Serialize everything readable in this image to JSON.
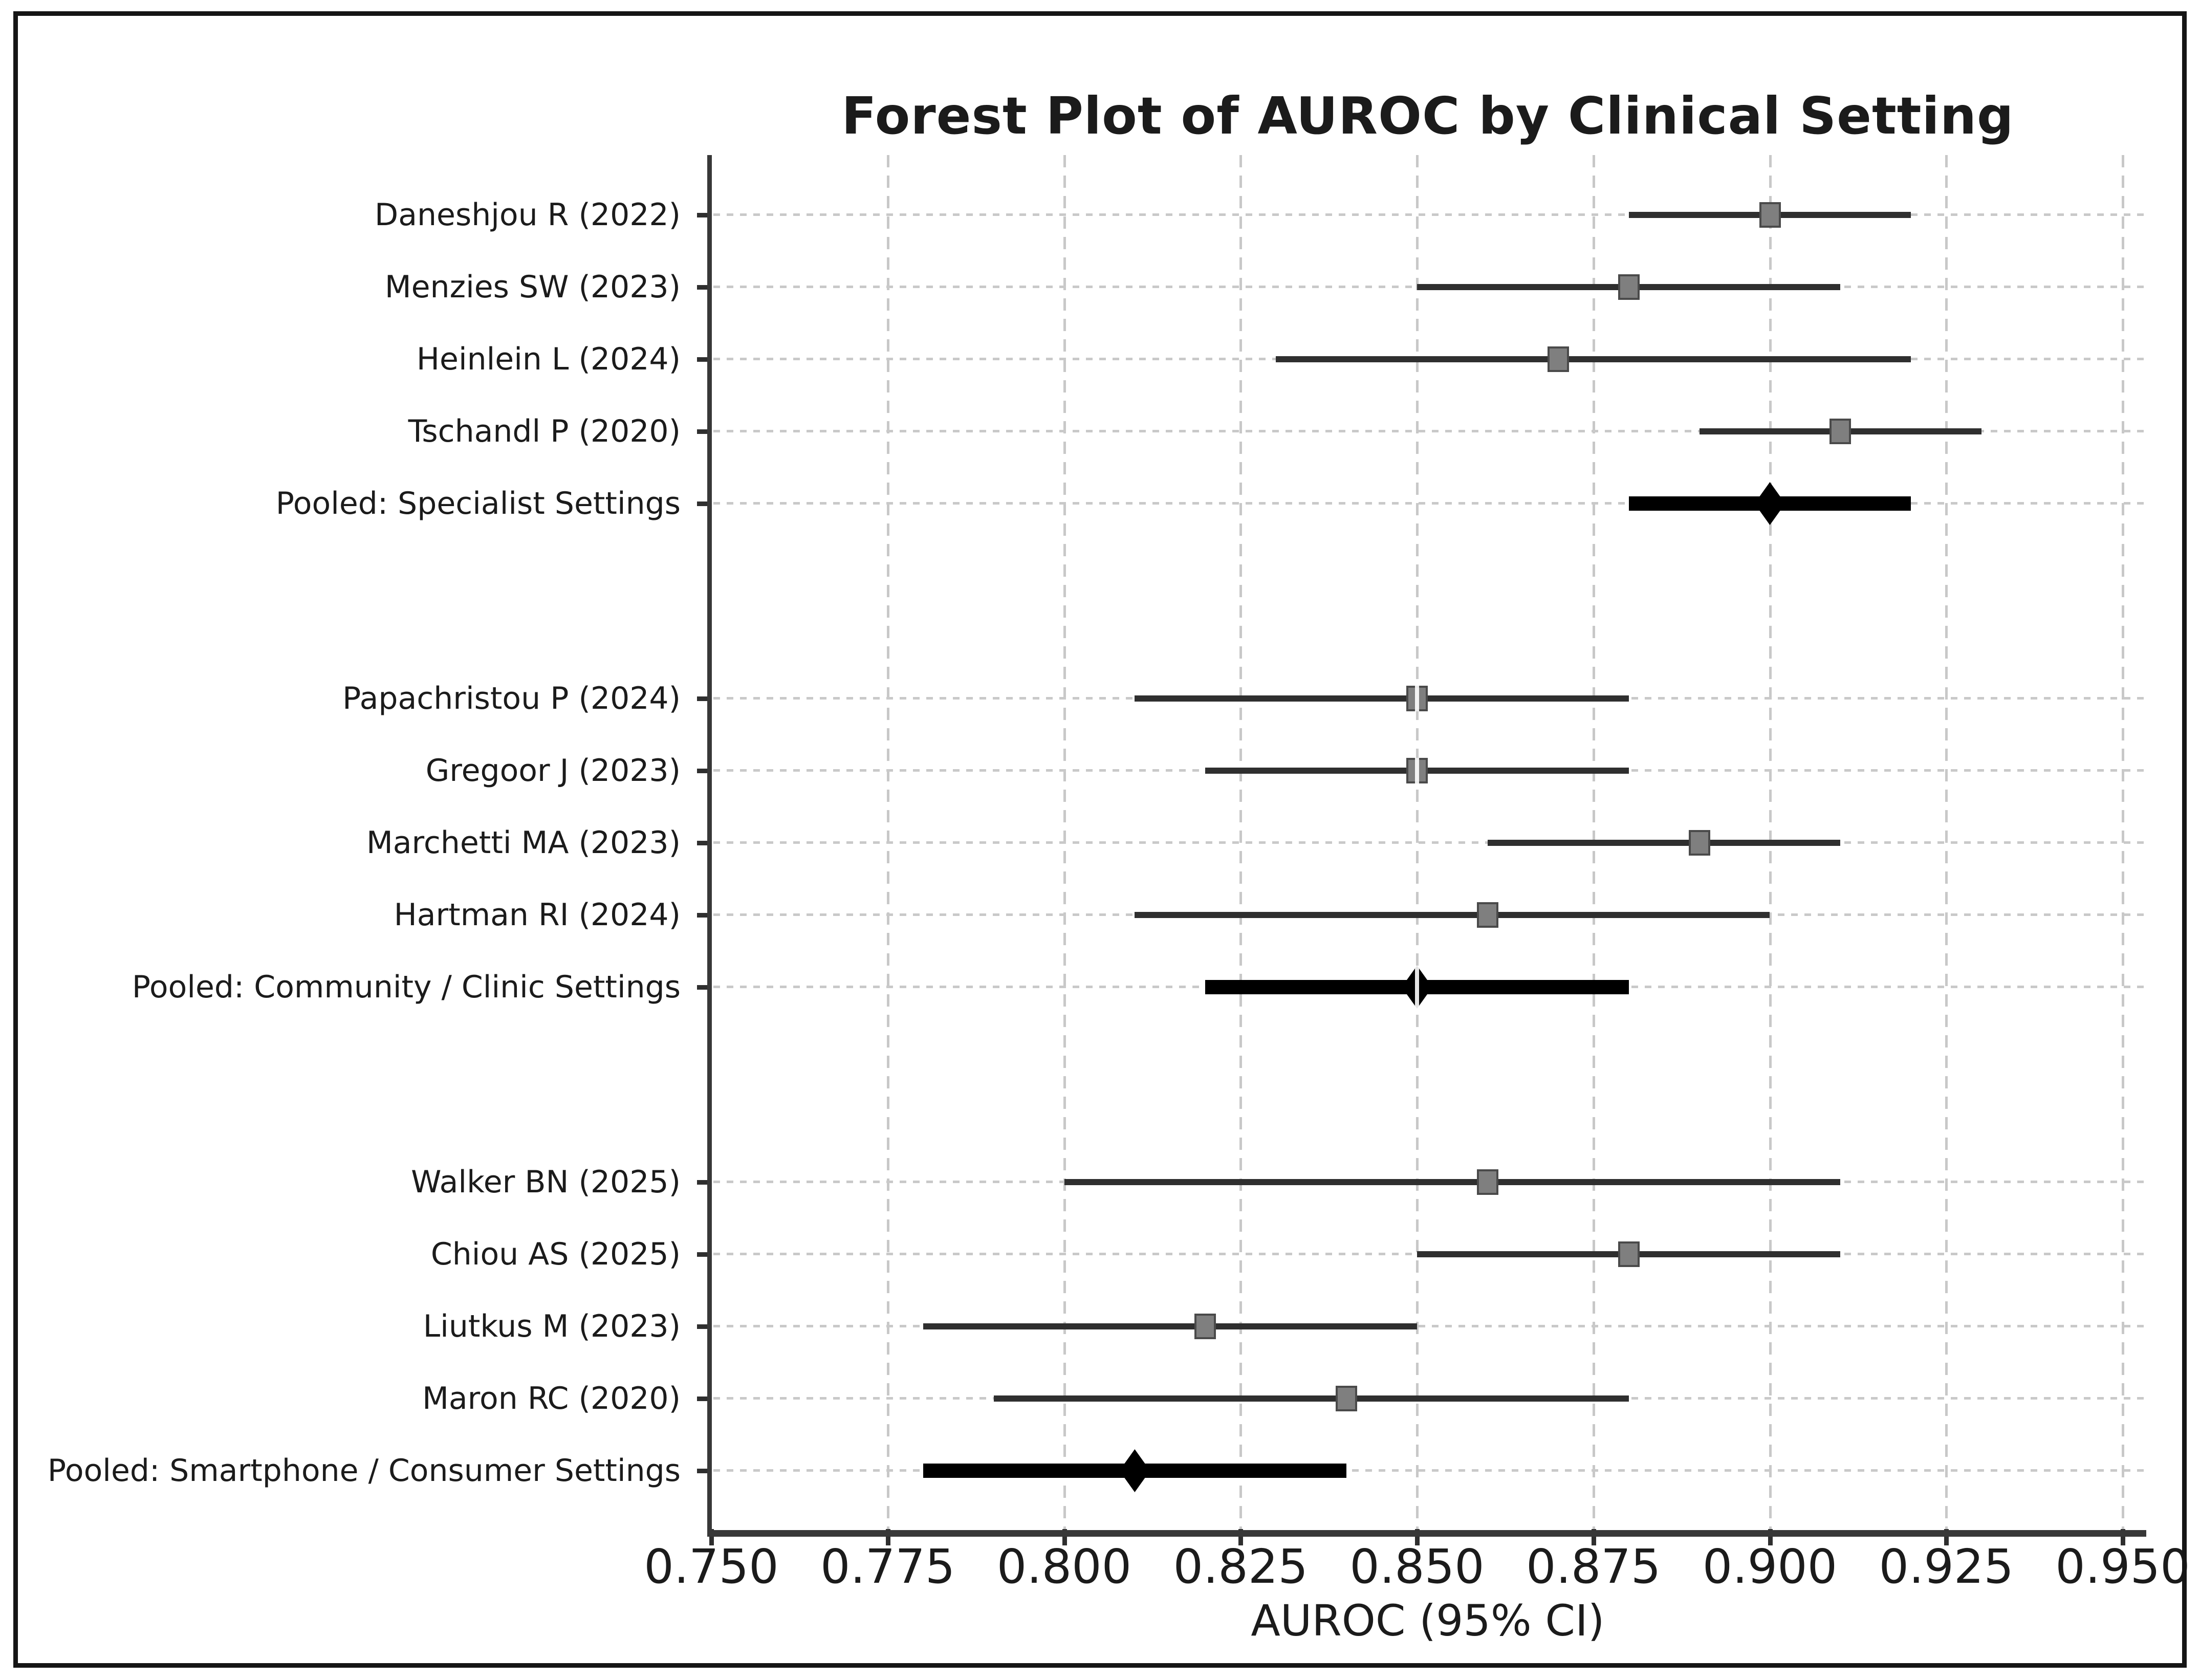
{
  "chart_data": {
    "type": "forest",
    "title": "Forest Plot of AUROC by Clinical Setting",
    "xlabel": "AUROC (95% CI)",
    "xlim": [
      0.75,
      0.95
    ],
    "x_ticks": [
      "0.750",
      "0.775",
      "0.800",
      "0.825",
      "0.850",
      "0.875",
      "0.900",
      "0.925",
      "0.950"
    ],
    "grid": "vertical dashed gridlines at each x tick; dotted horizontal guide at each row",
    "legend_position": "none",
    "groups": [
      {
        "name": "Specialist Settings",
        "rows": [
          {
            "label": "Daneshjou R (2022)",
            "mean": 0.9,
            "ci_low": 0.88,
            "ci_high": 0.92,
            "pooled": false,
            "notch": false
          },
          {
            "label": "Menzies SW (2023)",
            "mean": 0.88,
            "ci_low": 0.85,
            "ci_high": 0.91,
            "pooled": false,
            "notch": false
          },
          {
            "label": "Heinlein L (2024)",
            "mean": 0.87,
            "ci_low": 0.83,
            "ci_high": 0.92,
            "pooled": false,
            "notch": false
          },
          {
            "label": "Tschandl P (2020)",
            "mean": 0.91,
            "ci_low": 0.89,
            "ci_high": 0.93,
            "pooled": false,
            "notch": false
          },
          {
            "label": "Pooled: Specialist Settings",
            "mean": 0.9,
            "ci_low": 0.88,
            "ci_high": 0.92,
            "pooled": true,
            "notch": false
          }
        ]
      },
      {
        "name": "Community / Clinic Settings",
        "rows": [
          {
            "label": "Papachristou P (2024)",
            "mean": 0.85,
            "ci_low": 0.81,
            "ci_high": 0.88,
            "pooled": false,
            "notch": true
          },
          {
            "label": "Gregoor J (2023)",
            "mean": 0.85,
            "ci_low": 0.82,
            "ci_high": 0.88,
            "pooled": false,
            "notch": true
          },
          {
            "label": "Marchetti MA (2023)",
            "mean": 0.89,
            "ci_low": 0.86,
            "ci_high": 0.91,
            "pooled": false,
            "notch": false
          },
          {
            "label": "Hartman RI (2024)",
            "mean": 0.86,
            "ci_low": 0.81,
            "ci_high": 0.9,
            "pooled": false,
            "notch": false
          },
          {
            "label": "Pooled: Community / Clinic Settings",
            "mean": 0.85,
            "ci_low": 0.82,
            "ci_high": 0.88,
            "pooled": true,
            "notch": true
          }
        ]
      },
      {
        "name": "Smartphone / Consumer Settings",
        "rows": [
          {
            "label": "Walker BN (2025)",
            "mean": 0.86,
            "ci_low": 0.8,
            "ci_high": 0.91,
            "pooled": false,
            "notch": false
          },
          {
            "label": "Chiou AS (2025)",
            "mean": 0.88,
            "ci_low": 0.85,
            "ci_high": 0.91,
            "pooled": false,
            "notch": false
          },
          {
            "label": "Liutkus M (2023)",
            "mean": 0.82,
            "ci_low": 0.78,
            "ci_high": 0.85,
            "pooled": false,
            "notch": false
          },
          {
            "label": "Maron RC (2020)",
            "mean": 0.84,
            "ci_low": 0.79,
            "ci_high": 0.88,
            "pooled": false,
            "notch": false
          },
          {
            "label": "Pooled: Smartphone / Consumer Settings",
            "mean": 0.81,
            "ci_low": 0.78,
            "ci_high": 0.84,
            "pooled": true,
            "notch": false
          }
        ]
      }
    ],
    "colors": {
      "study_marker_fill": "#7f7f7f",
      "study_marker_edge": "#4a4a4a",
      "ci_line": "#2f2f2f",
      "pooled": "#000000",
      "gridline": "#c8c8c8",
      "row_guide": "#c9c9c9",
      "spine": "#383838",
      "text": "#1b1b1b",
      "background": "#ffffff",
      "frame": "#151515"
    }
  }
}
